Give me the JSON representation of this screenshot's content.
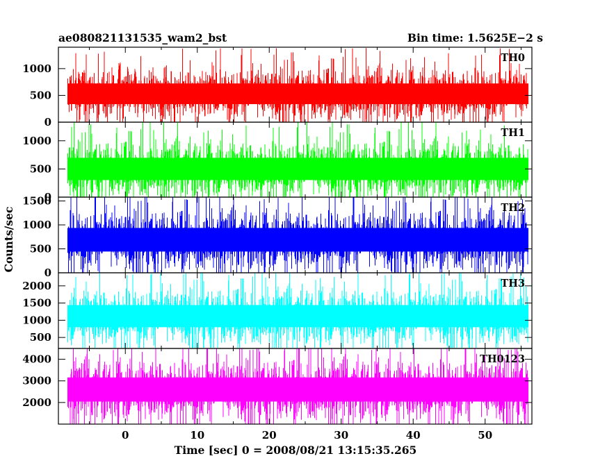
{
  "header": {
    "left_title": "ae080821131535_wam2_bst",
    "right_title": "Bin time: 1.5625E−2 s"
  },
  "ylabel": "Counts/sec",
  "xlabel": "Time [sec] 0 = 2008/08/21 13:15:35.265",
  "chart_data": {
    "type": "line",
    "title": "ae080821131535_wam2_bst",
    "subtitle": "Bin time: 1.5625E−2 s",
    "xlabel": "Time [sec] 0 = 2008/08/21 13:15:35.265",
    "ylabel": "Counts/sec",
    "xlim": [
      -9.3,
      56.5
    ],
    "data_x_range": [
      -8,
      56
    ],
    "x_ticks": [
      0,
      10,
      20,
      30,
      40,
      50
    ],
    "x_tick_labels": [
      "0",
      "10",
      "20",
      "30",
      "40",
      "50"
    ],
    "grid": false,
    "panels": [
      {
        "name": "TH0",
        "color": "#ff0000",
        "ylim": [
          0,
          1400
        ],
        "y_ticks": [
          0,
          500,
          1000
        ],
        "y_tick_labels": [
          "0",
          "500",
          "1000"
        ],
        "baseline": 530,
        "typical_range": [
          100,
          1000
        ],
        "min": 0,
        "max": 1400
      },
      {
        "name": "TH1",
        "color": "#00ff00",
        "ylim": [
          0,
          1330
        ],
        "y_ticks": [
          0,
          500,
          1000
        ],
        "y_tick_labels": [
          "0",
          "500",
          "1000"
        ],
        "baseline": 500,
        "typical_range": [
          80,
          1000
        ],
        "min": 0,
        "max": 1330
      },
      {
        "name": "TH2",
        "color": "#0000ff",
        "ylim": [
          0,
          1580
        ],
        "y_ticks": [
          0,
          500,
          1000,
          1500
        ],
        "y_tick_labels": [
          "0",
          "500",
          "1000",
          "1500"
        ],
        "baseline": 690,
        "typical_range": [
          150,
          1300
        ],
        "min": 0,
        "max": 1580
      },
      {
        "name": "TH3",
        "color": "#00ffff",
        "ylim": [
          180,
          2380
        ],
        "y_ticks": [
          500,
          1000,
          1500,
          2000
        ],
        "y_tick_labels": [
          "500",
          "1000",
          "1500",
          "2000"
        ],
        "baseline": 1120,
        "typical_range": [
          400,
          1900
        ],
        "min": 200,
        "max": 2380
      },
      {
        "name": "TH0123",
        "color": "#ff00ff",
        "ylim": [
          1000,
          4500
        ],
        "y_ticks": [
          2000,
          3000,
          4000
        ],
        "y_tick_labels": [
          "2000",
          "3000",
          "4000"
        ],
        "baseline": 2600,
        "typical_range": [
          1400,
          4000
        ],
        "min": 1000,
        "max": 4500
      }
    ]
  }
}
